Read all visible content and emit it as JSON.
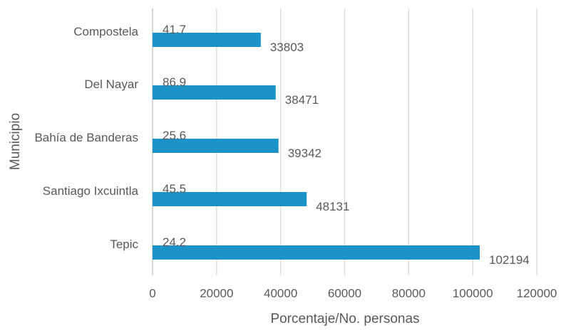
{
  "chart_data": {
    "type": "bar",
    "orientation": "horizontal",
    "title": "",
    "xlabel": "Porcentaje/No. personas",
    "ylabel": "Municipio",
    "categories": [
      "Tepic",
      "Santiago Ixcuintla",
      "Bahía de Banderas",
      "Del Nayar",
      "Compostela"
    ],
    "series": [
      {
        "name": "",
        "values": [
          24.2,
          45.5,
          25.6,
          86.9,
          41.7
        ]
      },
      {
        "name": "",
        "values": [
          102194,
          48131,
          39342,
          38471,
          33803
        ]
      }
    ],
    "xlim": [
      0,
      120000
    ],
    "xticks": [
      0,
      20000,
      40000,
      60000,
      80000,
      100000,
      120000
    ],
    "grid": "vertical",
    "legend": "none",
    "colors": {
      "bar": "#1b93c8",
      "grid": "#d9d9d9",
      "text": "#595959"
    }
  }
}
